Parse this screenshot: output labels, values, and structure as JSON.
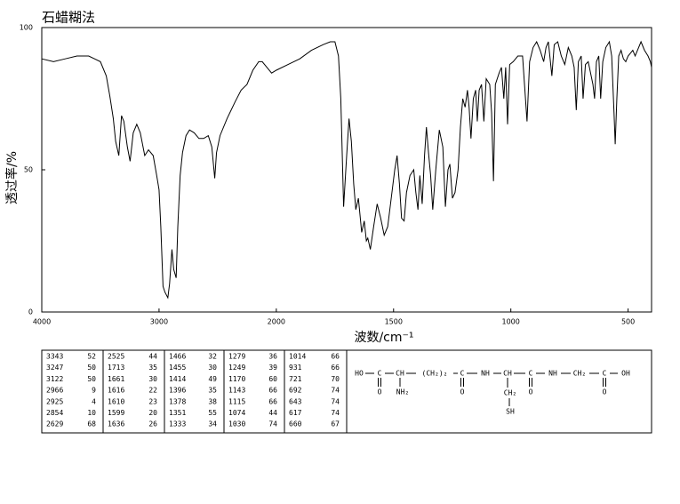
{
  "chart_data": {
    "type": "line",
    "title": "石蜡糊法",
    "x_label": "波数/cm⁻¹",
    "y_label": "透过率/%",
    "color": "#000000",
    "xlim": [
      4000,
      400
    ],
    "x_scale_break": 2000,
    "ylim": [
      0,
      100
    ],
    "xticks": [
      4000,
      3000,
      2000,
      1500,
      1000,
      500
    ],
    "yticks": [
      0,
      50,
      100
    ],
    "x": [
      4000,
      3900,
      3800,
      3700,
      3600,
      3550,
      3500,
      3450,
      3420,
      3390,
      3370,
      3343,
      3320,
      3300,
      3270,
      3247,
      3220,
      3190,
      3160,
      3122,
      3090,
      3050,
      3020,
      3000,
      2985,
      2966,
      2950,
      2925,
      2910,
      2890,
      2875,
      2854,
      2840,
      2820,
      2800,
      2770,
      2740,
      2700,
      2660,
      2620,
      2580,
      2550,
      2525,
      2510,
      2480,
      2420,
      2350,
      2300,
      2250,
      2200,
      2150,
      2120,
      2080,
      2040,
      2000,
      1950,
      1900,
      1850,
      1800,
      1770,
      1750,
      1735,
      1725,
      1713,
      1700,
      1690,
      1680,
      1670,
      1661,
      1650,
      1636,
      1625,
      1616,
      1610,
      1599,
      1585,
      1570,
      1555,
      1540,
      1525,
      1510,
      1495,
      1485,
      1475,
      1466,
      1455,
      1445,
      1430,
      1414,
      1405,
      1396,
      1388,
      1378,
      1368,
      1360,
      1351,
      1342,
      1333,
      1320,
      1305,
      1290,
      1279,
      1268,
      1260,
      1249,
      1238,
      1225,
      1215,
      1205,
      1195,
      1185,
      1178,
      1170,
      1160,
      1150,
      1143,
      1135,
      1125,
      1115,
      1105,
      1090,
      1082,
      1074,
      1066,
      1050,
      1040,
      1030,
      1022,
      1014,
      1005,
      990,
      970,
      950,
      931,
      920,
      905,
      890,
      875,
      860,
      850,
      840,
      825,
      815,
      800,
      785,
      770,
      755,
      740,
      730,
      721,
      712,
      700,
      692,
      682,
      670,
      660,
      650,
      643,
      635,
      625,
      617,
      608,
      595,
      580,
      570,
      560,
      555,
      548,
      540,
      530,
      520,
      510,
      500,
      490,
      480,
      470,
      460,
      445,
      430,
      415,
      405,
      400
    ],
    "values": [
      89,
      88,
      89,
      90,
      90,
      89,
      88,
      83,
      76,
      68,
      60,
      55,
      69,
      67,
      58,
      53,
      63,
      66,
      63,
      55,
      57,
      55,
      48,
      43,
      30,
      9,
      7,
      5,
      10,
      22,
      15,
      12,
      30,
      48,
      56,
      62,
      64,
      63,
      61,
      61,
      62,
      58,
      47,
      56,
      62,
      68,
      74,
      78,
      80,
      85,
      88,
      88,
      86,
      84,
      85,
      87,
      89,
      92,
      94,
      95,
      95,
      90,
      75,
      37,
      55,
      68,
      60,
      45,
      36,
      40,
      28,
      32,
      25,
      26,
      22,
      30,
      38,
      33,
      27,
      30,
      40,
      50,
      55,
      45,
      33,
      32,
      42,
      48,
      50,
      42,
      36,
      48,
      38,
      55,
      65,
      56,
      48,
      36,
      50,
      64,
      58,
      37,
      50,
      52,
      40,
      42,
      50,
      65,
      75,
      72,
      78,
      72,
      61,
      75,
      78,
      67,
      78,
      80,
      67,
      82,
      80,
      70,
      46,
      80,
      84,
      86,
      75,
      86,
      66,
      87,
      88,
      90,
      90,
      67,
      88,
      93,
      95,
      92,
      88,
      93,
      95,
      83,
      94,
      95,
      90,
      87,
      93,
      90,
      86,
      71,
      88,
      90,
      75,
      87,
      88,
      84,
      80,
      75,
      88,
      90,
      75,
      88,
      93,
      95,
      90,
      70,
      59,
      75,
      90,
      92,
      89,
      88,
      90,
      91,
      92,
      90,
      92,
      95,
      92,
      90,
      88,
      86
    ]
  },
  "peak_table": [
    [
      [
        3343,
        52
      ],
      [
        3247,
        50
      ],
      [
        3122,
        50
      ],
      [
        2966,
        9
      ],
      [
        2925,
        4
      ],
      [
        2854,
        10
      ],
      [
        2629,
        68
      ]
    ],
    [
      [
        2525,
        44
      ],
      [
        1713,
        35
      ],
      [
        1661,
        30
      ],
      [
        1616,
        22
      ],
      [
        1610,
        23
      ],
      [
        1599,
        20
      ],
      [
        1636,
        26
      ]
    ],
    [
      [
        1466,
        32
      ],
      [
        1455,
        30
      ],
      [
        1414,
        49
      ],
      [
        1396,
        35
      ],
      [
        1378,
        38
      ],
      [
        1351,
        55
      ],
      [
        1333,
        34
      ]
    ],
    [
      [
        1279,
        36
      ],
      [
        1249,
        39
      ],
      [
        1170,
        60
      ],
      [
        1143,
        66
      ],
      [
        1115,
        66
      ],
      [
        1074,
        44
      ],
      [
        1030,
        74
      ]
    ],
    [
      [
        1014,
        66
      ],
      [
        931,
        66
      ],
      [
        721,
        70
      ],
      [
        692,
        74
      ],
      [
        643,
        74
      ],
      [
        617,
        74
      ],
      [
        660,
        67
      ]
    ]
  ],
  "structure": {
    "nodes": [
      "HO",
      "C",
      "CH",
      "(CH₂)₂",
      "C",
      "NH",
      "CH",
      "C",
      "NH",
      "CH₂",
      "C",
      "OH",
      "O",
      "NH₂",
      "O",
      "CH₂",
      "SH",
      "O",
      "O"
    ]
  }
}
